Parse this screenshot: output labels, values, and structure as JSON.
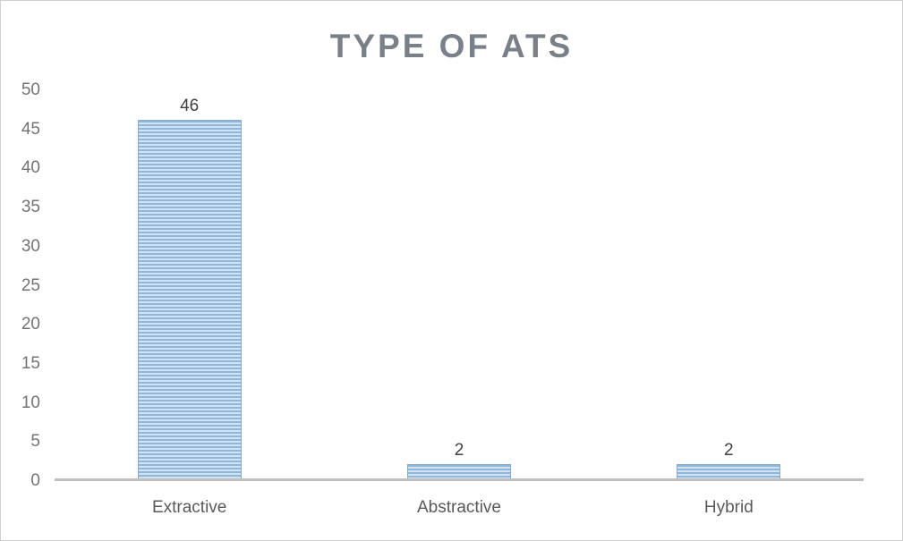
{
  "chart_data": {
    "type": "bar",
    "title": "TYPE OF ATS",
    "categories": [
      "Extractive",
      "Abstractive",
      "Hybrid"
    ],
    "values": [
      46,
      2,
      2
    ],
    "data_labels": [
      "46",
      "2",
      "2"
    ],
    "y_ticks": [
      "0",
      "5",
      "10",
      "15",
      "20",
      "25",
      "30",
      "35",
      "40",
      "45",
      "50"
    ],
    "ylim": [
      0,
      50
    ],
    "xlabel": "",
    "ylabel": "",
    "grid": false,
    "legend": "none",
    "bar_style": {
      "pattern": "horizontal-stripes",
      "stripe_light": "#d3e2f0",
      "stripe_dark": "#8fb7da",
      "border": "#84add0"
    },
    "colors": {
      "title": "#7a8087",
      "axis_tick_labels": "#737373",
      "category_labels": "#595959",
      "data_labels": "#404040",
      "axis_line": "#bfbfbf",
      "background": "#ffffff",
      "window_border": "#cfcfcf"
    }
  }
}
